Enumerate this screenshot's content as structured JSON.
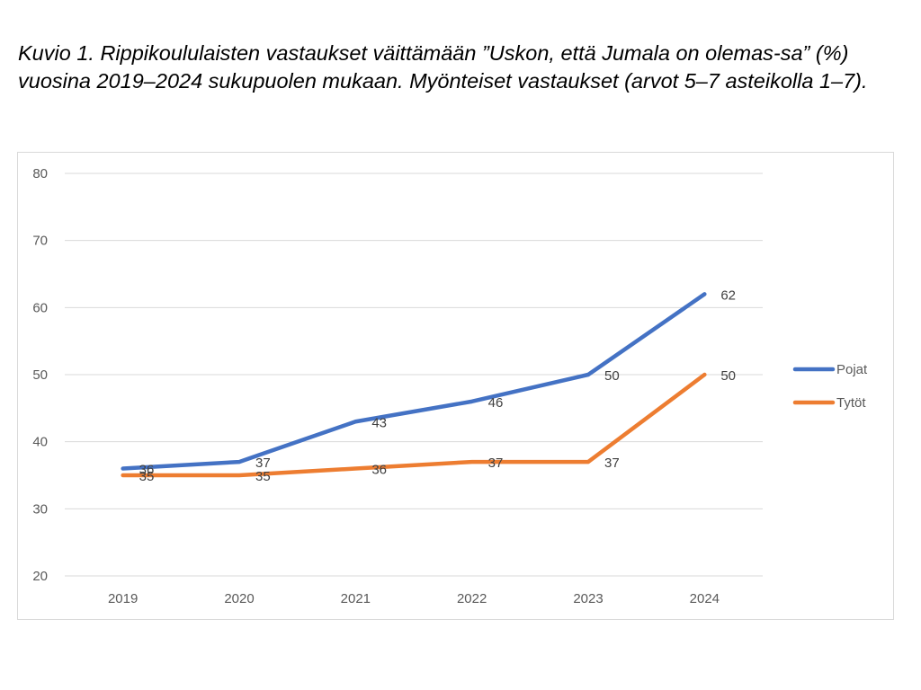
{
  "caption": "Kuvio 1. Rippikoululaisten vastaukset väittämään ”Uskon, että Jumala on olemas-sa” (%) vuosina 2019–2024 sukupuolen mukaan. Myönteiset vastaukset (arvot 5–7 asteikolla 1–7).",
  "chart_data": {
    "type": "line",
    "title": "",
    "xlabel": "",
    "ylabel": "",
    "categories": [
      "2019",
      "2020",
      "2021",
      "2022",
      "2023",
      "2024"
    ],
    "series": [
      {
        "name": "Pojat",
        "color": "#4472c4",
        "values": [
          36,
          37,
          43,
          46,
          50,
          62
        ]
      },
      {
        "name": "Tytöt",
        "color": "#ed7d31",
        "values": [
          35,
          35,
          36,
          37,
          37,
          50
        ]
      }
    ],
    "ylim": [
      20,
      80
    ],
    "yticks": [
      20,
      30,
      40,
      50,
      60,
      70,
      80
    ],
    "grid": true,
    "gridline_color": "#d9d9d9",
    "legend_position": "right",
    "data_labels": true
  }
}
